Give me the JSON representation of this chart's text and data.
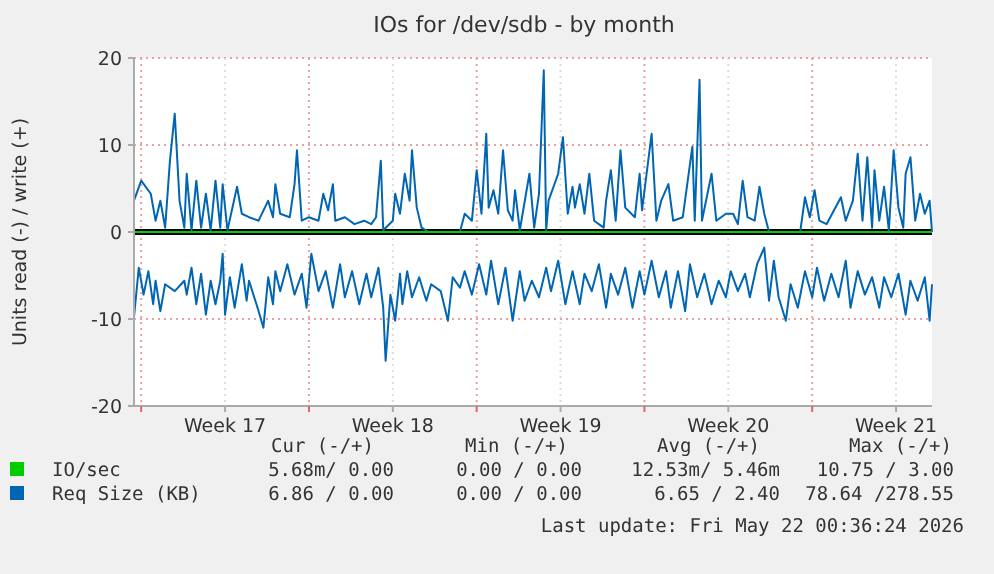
{
  "chart_data": {
    "type": "line",
    "title": "IOs for /dev/sdb - by month",
    "ylabel": "Units read (-) / write (+)",
    "xlim": [
      "2026-04-18T16:48",
      "2026-05-22T00:00"
    ],
    "ylim": [
      -20,
      20
    ],
    "yticks": [
      -20,
      -10,
      0,
      10,
      20
    ],
    "xticks": [
      {
        "value": "2026-04-19T00:00",
        "label": null
      },
      {
        "value": "2026-04-22T12:00",
        "label": "Week 17"
      },
      {
        "value": "2026-04-26T00:00",
        "label": null
      },
      {
        "value": "2026-04-29T12:00",
        "label": "Week 18"
      },
      {
        "value": "2026-05-03T00:00",
        "label": null
      },
      {
        "value": "2026-05-06T12:00",
        "label": "Week 19"
      },
      {
        "value": "2026-05-10T00:00",
        "label": null
      },
      {
        "value": "2026-05-13T12:00",
        "label": "Week 20"
      },
      {
        "value": "2026-05-17T00:00",
        "label": null
      },
      {
        "value": "2026-05-20T12:00",
        "label": "Week 21"
      }
    ],
    "grid": true,
    "legend": "bottom",
    "line_style": "solid",
    "marker": "none",
    "ref_lines": [
      {
        "axis": "y",
        "value": 0,
        "color": "#000000"
      }
    ],
    "series": [
      {
        "name": "Req Size (KB)",
        "color": "#0066b3",
        "x": [
          "2026-04-18T16:48",
          "2026-04-19T00:00",
          "2026-04-19T09:36",
          "2026-04-19T14:24",
          "2026-04-19T19:12",
          "2026-04-20T00:00",
          "2026-04-20T04:48",
          "2026-04-20T09:36",
          "2026-04-20T14:24",
          "2026-04-20T19:12",
          "2026-04-20T21:36",
          "2026-04-21T02:24",
          "2026-04-21T07:12",
          "2026-04-21T12:00",
          "2026-04-21T16:48",
          "2026-04-21T21:36",
          "2026-04-22T02:24",
          "2026-04-22T07:12",
          "2026-04-22T09:36",
          "2026-04-22T14:24",
          "2026-04-23T00:00",
          "2026-04-23T04:48",
          "2026-04-23T12:00",
          "2026-04-23T21:36",
          "2026-04-24T07:12",
          "2026-04-24T12:00",
          "2026-04-24T14:24",
          "2026-04-24T19:12",
          "2026-04-25T04:48",
          "2026-04-25T09:36",
          "2026-04-25T12:00",
          "2026-04-25T16:48",
          "2026-04-26T00:00",
          "2026-04-26T09:36",
          "2026-04-26T14:24",
          "2026-04-26T19:12",
          "2026-04-27T00:00",
          "2026-04-27T02:24",
          "2026-04-27T12:00",
          "2026-04-27T21:36",
          "2026-04-28T07:12",
          "2026-04-28T14:24",
          "2026-04-28T19:12",
          "2026-04-29T00:00",
          "2026-04-29T02:24",
          "2026-04-29T12:00",
          "2026-04-29T14:24",
          "2026-04-29T19:12",
          "2026-04-30T00:00",
          "2026-04-30T04:48",
          "2026-04-30T07:12",
          "2026-04-30T12:00",
          "2026-04-30T16:48",
          "2026-05-01T00:00",
          "2026-05-01T04:48",
          "2026-05-02T07:12",
          "2026-05-02T12:00",
          "2026-05-02T19:12",
          "2026-05-03T00:00",
          "2026-05-03T04:48",
          "2026-05-03T09:36",
          "2026-05-03T12:00",
          "2026-05-03T16:48",
          "2026-05-03T21:36",
          "2026-05-04T02:24",
          "2026-05-04T07:12",
          "2026-05-04T12:00",
          "2026-05-04T14:24",
          "2026-05-04T19:12",
          "2026-05-05T04:48",
          "2026-05-05T09:36",
          "2026-05-05T14:24",
          "2026-05-05T19:12",
          "2026-05-05T21:36",
          "2026-05-06T00:00",
          "2026-05-06T09:36",
          "2026-05-06T14:24",
          "2026-05-06T19:12",
          "2026-05-07T00:00",
          "2026-05-07T02:24",
          "2026-05-07T07:12",
          "2026-05-07T12:00",
          "2026-05-07T16:48",
          "2026-05-07T21:36",
          "2026-05-08T07:12",
          "2026-05-08T09:36",
          "2026-05-08T14:24",
          "2026-05-08T19:12",
          "2026-05-09T00:00",
          "2026-05-09T04:48",
          "2026-05-09T14:24",
          "2026-05-09T19:12",
          "2026-05-09T21:36",
          "2026-05-10T07:12",
          "2026-05-10T12:00",
          "2026-05-10T16:48",
          "2026-05-11T00:00",
          "2026-05-11T04:48",
          "2026-05-11T14:24",
          "2026-05-12T00:00",
          "2026-05-12T02:24",
          "2026-05-12T07:12",
          "2026-05-12T09:36",
          "2026-05-12T14:24",
          "2026-05-12T19:12",
          "2026-05-13T00:00",
          "2026-05-13T09:36",
          "2026-05-13T16:48",
          "2026-05-13T21:36",
          "2026-05-14T02:24",
          "2026-05-14T07:12",
          "2026-05-14T14:24",
          "2026-05-14T19:12",
          "2026-05-15T00:00",
          "2026-05-15T04:48",
          "2026-05-16T12:00",
          "2026-05-16T16:48",
          "2026-05-16T21:36",
          "2026-05-17T02:24",
          "2026-05-17T07:12",
          "2026-05-17T14:24",
          "2026-05-18T04:48",
          "2026-05-18T09:36",
          "2026-05-18T16:48",
          "2026-05-18T21:36",
          "2026-05-19T02:24",
          "2026-05-19T07:12",
          "2026-05-19T12:00",
          "2026-05-19T14:24",
          "2026-05-19T19:12",
          "2026-05-20T00:00",
          "2026-05-20T04:48",
          "2026-05-20T09:36",
          "2026-05-20T14:24",
          "2026-05-20T19:12",
          "2026-05-20T21:36",
          "2026-05-21T02:24",
          "2026-05-21T07:12",
          "2026-05-21T12:00",
          "2026-05-21T16:48",
          "2026-05-21T21:36",
          "2026-05-22T00:00"
        ],
        "values": [
          3.6,
          5.9,
          4.4,
          1.3,
          3.6,
          0.5,
          8.2,
          13.6,
          3.6,
          0.5,
          6.7,
          0.2,
          5.9,
          0.5,
          4.4,
          0.2,
          5.9,
          0.5,
          5.5,
          0.2,
          5.2,
          2.1,
          1.7,
          1.3,
          3.6,
          1.7,
          5.5,
          2.1,
          1.7,
          5.5,
          9.4,
          1.3,
          1.7,
          1.3,
          4.4,
          2.5,
          5.5,
          1.3,
          1.7,
          0.9,
          1.3,
          0.9,
          1.7,
          8.2,
          0.2,
          1.3,
          4.4,
          2.1,
          6.7,
          3.6,
          9.4,
          2.8,
          0.5,
          0,
          0,
          0,
          2.1,
          1.3,
          7.1,
          2.1,
          11.3,
          2.8,
          4.8,
          2.1,
          9.4,
          2.5,
          1.3,
          4.8,
          0.2,
          6.7,
          0.5,
          4.4,
          18.6,
          0.2,
          3.6,
          6.7,
          10.9,
          2.1,
          5.2,
          2.8,
          5.5,
          2.1,
          6.7,
          1.3,
          0.5,
          3.6,
          7.1,
          1.3,
          9.4,
          2.8,
          1.7,
          6.7,
          2.5,
          11.3,
          1.3,
          3.6,
          5.5,
          1.3,
          1.7,
          9.8,
          1.3,
          17.5,
          1.3,
          4.0,
          6.7,
          1.3,
          2.1,
          2.1,
          0.9,
          5.9,
          1.7,
          1.3,
          5.2,
          2.1,
          0,
          0,
          4.0,
          1.7,
          4.8,
          1.3,
          0.9,
          4.0,
          1.3,
          3.6,
          9.0,
          1.3,
          8.6,
          0.5,
          7.1,
          1.3,
          5.2,
          0.2,
          9.4,
          2.8,
          0.5,
          6.7,
          8.6,
          1.3,
          4.4,
          2.1,
          3.6,
          0
        ]
      },
      {
        "color": "#0066b3",
        "x": [
          "2026-04-18T16:48",
          "2026-04-18T21:36",
          "2026-04-19T02:24",
          "2026-04-19T07:12",
          "2026-04-19T12:00",
          "2026-04-19T14:24",
          "2026-04-19T19:12",
          "2026-04-20T00:00",
          "2026-04-20T09:36",
          "2026-04-20T19:12",
          "2026-04-20T21:36",
          "2026-04-21T02:24",
          "2026-04-21T07:12",
          "2026-04-21T12:00",
          "2026-04-21T16:48",
          "2026-04-21T21:36",
          "2026-04-22T02:24",
          "2026-04-22T07:12",
          "2026-04-22T09:36",
          "2026-04-22T12:00",
          "2026-04-22T16:48",
          "2026-04-22T21:36",
          "2026-04-23T04:48",
          "2026-04-23T09:36",
          "2026-04-23T12:00",
          "2026-04-23T21:36",
          "2026-04-24T02:24",
          "2026-04-24T07:12",
          "2026-04-24T12:00",
          "2026-04-24T14:24",
          "2026-04-24T19:12",
          "2026-04-25T02:24",
          "2026-04-25T09:36",
          "2026-04-25T16:48",
          "2026-04-25T21:36",
          "2026-04-26T02:24",
          "2026-04-26T09:36",
          "2026-04-26T16:48",
          "2026-04-27T00:00",
          "2026-04-27T07:12",
          "2026-04-27T12:00",
          "2026-04-27T19:12",
          "2026-04-28T02:24",
          "2026-04-28T09:36",
          "2026-04-28T14:24",
          "2026-04-28T21:36",
          "2026-04-29T02:24",
          "2026-04-29T04:48",
          "2026-04-29T09:36",
          "2026-04-29T14:24",
          "2026-04-29T19:12",
          "2026-04-29T21:36",
          "2026-04-30T02:24",
          "2026-04-30T07:12",
          "2026-04-30T14:24",
          "2026-04-30T21:36",
          "2026-05-01T02:24",
          "2026-05-01T12:00",
          "2026-05-01T19:12",
          "2026-05-02T00:00",
          "2026-05-02T07:12",
          "2026-05-02T12:00",
          "2026-05-02T19:12",
          "2026-05-03T02:24",
          "2026-05-03T09:36",
          "2026-05-03T14:24",
          "2026-05-03T21:36",
          "2026-05-04T04:48",
          "2026-05-04T12:00",
          "2026-05-04T19:12",
          "2026-05-05T00:00",
          "2026-05-05T07:12",
          "2026-05-05T14:24",
          "2026-05-05T21:36",
          "2026-05-06T02:24",
          "2026-05-06T09:36",
          "2026-05-06T16:48",
          "2026-05-07T00:00",
          "2026-05-07T07:12",
          "2026-05-07T12:00",
          "2026-05-07T19:12",
          "2026-05-08T02:24",
          "2026-05-08T09:36",
          "2026-05-08T14:24",
          "2026-05-08T21:36",
          "2026-05-09T04:48",
          "2026-05-09T12:00",
          "2026-05-09T19:12",
          "2026-05-10T00:00",
          "2026-05-10T07:12",
          "2026-05-10T14:24",
          "2026-05-10T21:36",
          "2026-05-11T02:24",
          "2026-05-11T09:36",
          "2026-05-11T16:48",
          "2026-05-11T21:36",
          "2026-05-12T04:48",
          "2026-05-12T12:00",
          "2026-05-12T19:12",
          "2026-05-13T02:24",
          "2026-05-13T09:36",
          "2026-05-13T14:24",
          "2026-05-13T21:36",
          "2026-05-14T04:48",
          "2026-05-14T09:36",
          "2026-05-14T16:48",
          "2026-05-15T00:00",
          "2026-05-15T04:48",
          "2026-05-15T09:36",
          "2026-05-15T14:24",
          "2026-05-15T21:36",
          "2026-05-16T02:24",
          "2026-05-16T09:36",
          "2026-05-16T16:48",
          "2026-05-17T00:00",
          "2026-05-17T04:48",
          "2026-05-17T12:00",
          "2026-05-17T19:12",
          "2026-05-18T02:24",
          "2026-05-18T09:36",
          "2026-05-18T14:24",
          "2026-05-18T21:36",
          "2026-05-19T04:48",
          "2026-05-19T12:00",
          "2026-05-19T19:12",
          "2026-05-20T00:00",
          "2026-05-20T07:12",
          "2026-05-20T14:24",
          "2026-05-20T21:36",
          "2026-05-21T02:24",
          "2026-05-21T09:36",
          "2026-05-21T16:48",
          "2026-05-21T21:36",
          "2026-05-22T00:00"
        ],
        "values": [
          -9.8,
          -4.1,
          -7.2,
          -4.5,
          -8.3,
          -5.6,
          -9.1,
          -6.0,
          -6.8,
          -5.6,
          -7.2,
          -4.1,
          -8.3,
          -4.8,
          -9.5,
          -5.6,
          -8.3,
          -5.6,
          -2.5,
          -9.5,
          -5.2,
          -8.7,
          -3.7,
          -7.9,
          -5.6,
          -9.1,
          -11.0,
          -5.2,
          -8.3,
          -4.5,
          -6.8,
          -3.7,
          -7.2,
          -4.8,
          -8.7,
          -2.5,
          -6.8,
          -4.5,
          -8.7,
          -3.7,
          -7.5,
          -4.5,
          -8.3,
          -4.8,
          -7.5,
          -4.1,
          -8.7,
          -14.8,
          -7.2,
          -10.2,
          -4.8,
          -8.3,
          -4.5,
          -7.5,
          -5.2,
          -7.9,
          -6.0,
          -6.8,
          -10.2,
          -5.2,
          -6.4,
          -4.5,
          -7.2,
          -3.7,
          -7.2,
          -3.3,
          -8.3,
          -4.1,
          -10.2,
          -4.5,
          -7.9,
          -5.6,
          -7.5,
          -4.1,
          -6.8,
          -3.3,
          -8.3,
          -4.5,
          -8.3,
          -4.8,
          -6.8,
          -3.7,
          -8.7,
          -4.8,
          -7.2,
          -4.1,
          -8.7,
          -4.5,
          -7.2,
          -3.3,
          -7.5,
          -4.5,
          -8.7,
          -4.5,
          -9.1,
          -3.7,
          -7.5,
          -4.8,
          -8.3,
          -5.6,
          -7.5,
          -4.5,
          -6.8,
          -4.8,
          -7.5,
          -3.7,
          -1.8,
          -7.9,
          -3.3,
          -7.5,
          -10.2,
          -6.0,
          -8.7,
          -4.5,
          -7.5,
          -4.1,
          -7.9,
          -4.8,
          -7.5,
          -3.3,
          -8.7,
          -4.5,
          -7.2,
          -5.2,
          -8.7,
          -5.2,
          -7.5,
          -4.8,
          -9.5,
          -5.6,
          -7.9,
          -5.2,
          -10.2,
          -6.0
        ]
      },
      {
        "name": "IO/sec",
        "color": "#00cc00",
        "x": [
          "2026-04-18T16:48",
          "2026-05-22T00:00"
        ],
        "values": [
          0,
          0
        ]
      }
    ],
    "annotations": [
      "Cur (-/+)",
      "Min (-/+)",
      "Avg (-/+)",
      "Max (-/+)",
      "5.68m/ 0.00",
      "0.00 / 0.00",
      "12.53m/ 5.46m",
      "10.75 / 3.00",
      "6.86 / 0.00",
      "0.00 / 0.00",
      "6.65 / 2.40",
      "78.64 /278.55",
      "Last update: Fri May 22 00:36:24 2026"
    ]
  }
}
